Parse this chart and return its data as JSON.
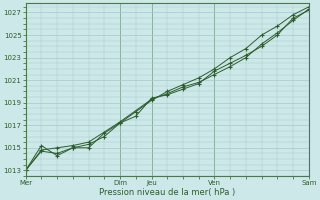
{
  "xlabel": "Pression niveau de la mer( hPa )",
  "background_color": "#cce8e8",
  "line_color": "#2d5e2d",
  "grid_color": "#a8c8c8",
  "grid_color_major": "#a8c8c8",
  "ylim": [
    1012.5,
    1027.8
  ],
  "yticks": [
    1013,
    1015,
    1017,
    1019,
    1021,
    1023,
    1025,
    1027
  ],
  "xtick_labels": [
    "Mer",
    "Dim",
    "Jeu",
    "Ven",
    "Sam"
  ],
  "xtick_positions": [
    0,
    3,
    4,
    6,
    9
  ],
  "xlim": [
    0,
    9
  ],
  "series1_x": [
    0.0,
    0.5,
    1.0,
    1.5,
    2.0,
    3.0,
    4.0,
    4.5,
    5.0,
    5.5,
    6.0,
    6.5,
    7.0,
    7.5,
    8.0,
    8.5,
    9.0
  ],
  "series1_y": [
    1013.0,
    1014.8,
    1015.0,
    1015.2,
    1015.5,
    1017.3,
    1019.3,
    1019.8,
    1020.4,
    1020.8,
    1021.5,
    1022.2,
    1023.0,
    1024.2,
    1025.2,
    1026.3,
    1027.3
  ],
  "series2_x": [
    0.0,
    0.5,
    1.0,
    1.5,
    2.0,
    2.5,
    3.0,
    3.5,
    4.0,
    4.5,
    5.0,
    5.5,
    6.0,
    6.5,
    7.0,
    7.5,
    8.0,
    8.5,
    9.0
  ],
  "series2_y": [
    1013.0,
    1014.7,
    1014.5,
    1015.0,
    1015.3,
    1016.0,
    1017.2,
    1017.8,
    1019.4,
    1019.7,
    1020.2,
    1020.7,
    1021.8,
    1022.5,
    1023.2,
    1024.0,
    1025.0,
    1026.5,
    1027.2
  ],
  "series3_x": [
    0.0,
    0.5,
    1.0,
    1.5,
    2.0,
    2.5,
    3.0,
    3.5,
    4.0,
    4.5,
    5.0,
    5.5,
    6.0,
    6.5,
    7.0,
    7.5,
    8.0,
    8.5,
    9.0
  ],
  "series3_y": [
    1013.0,
    1015.2,
    1014.3,
    1015.0,
    1015.0,
    1016.3,
    1017.2,
    1018.2,
    1019.2,
    1020.0,
    1020.6,
    1021.2,
    1022.0,
    1023.0,
    1023.8,
    1025.0,
    1025.8,
    1026.8,
    1027.5
  ]
}
